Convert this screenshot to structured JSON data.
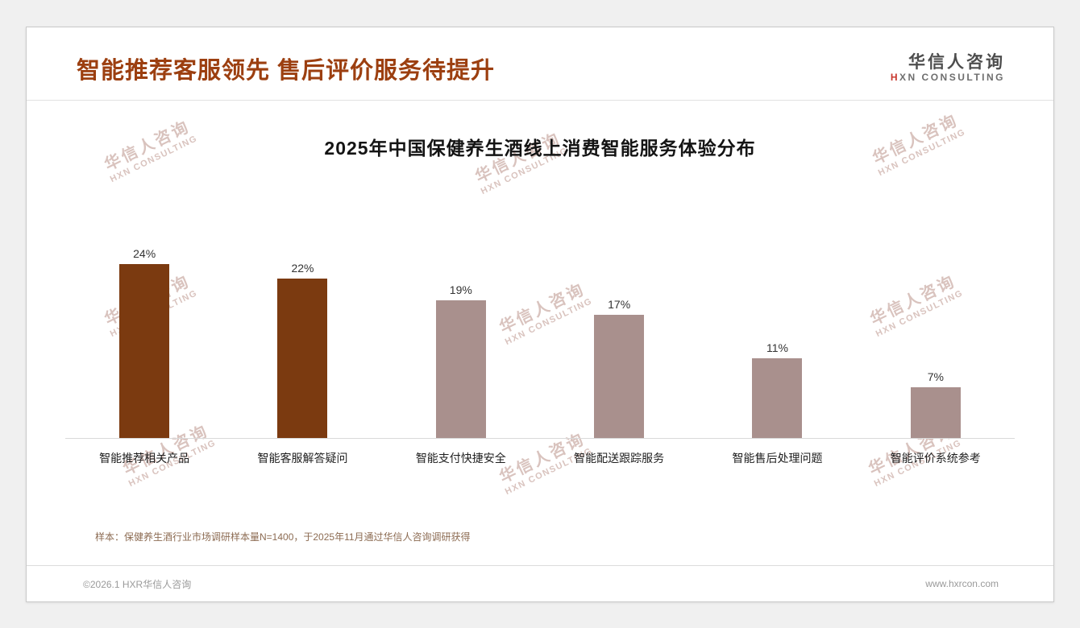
{
  "header": {
    "title": "智能推荐客服领先 售后评价服务待提升",
    "logo": {
      "name_cn": "华信人咨询",
      "name_en": "HXN CONSULTING"
    }
  },
  "watermark": {
    "line1": "华信人咨询",
    "line2": "HXN CONSULTING"
  },
  "chart_data": {
    "type": "bar",
    "title": "2025年中国保健养生酒线上消费智能服务体验分布",
    "categories": [
      "智能推荐相关产品",
      "智能客服解答疑问",
      "智能支付快捷安全",
      "智能配送跟踪服务",
      "智能售后处理问题",
      "智能评价系统参考"
    ],
    "values": [
      24,
      22,
      19,
      17,
      11,
      7
    ],
    "unit": "%",
    "colors": [
      "#7b3a10",
      "#7b3a10",
      "#a9908d",
      "#a9908d",
      "#a9908d",
      "#a9908d"
    ],
    "ylim": [
      0,
      26
    ],
    "grid": false,
    "legend": false,
    "value_labels_shown": true
  },
  "footnote": "样本：保健养生酒行业市场调研样本量N=1400，于2025年11月通过华信人咨询调研获得",
  "footer": {
    "copyright": "©2026.1 HXR华信人咨询",
    "website": "www.hxrcon.com"
  },
  "colors": {
    "title": "#9c3f10",
    "bar_dark": "#7b3a10",
    "bar_light": "#a9908d",
    "logo_accent": "#c8372d"
  }
}
